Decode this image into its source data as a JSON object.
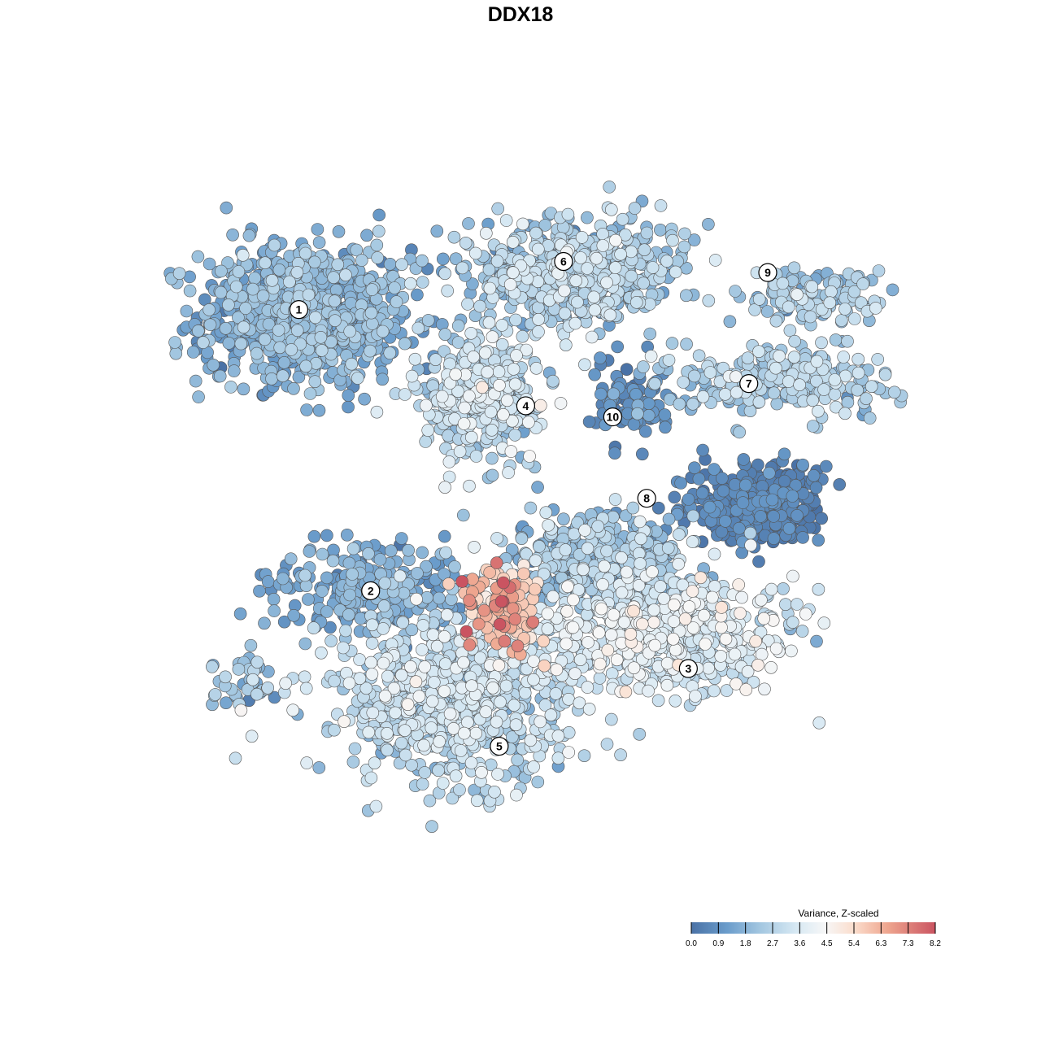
{
  "chart_data": {
    "type": "scatter",
    "title": "DDX18",
    "subtitle": "",
    "xlabel": "",
    "ylabel": "",
    "grid": false,
    "color_scale": {
      "title": "Variance, Z-scaled",
      "min": 0.0,
      "max": 8.2,
      "ticks": [
        "0.0",
        "0.9",
        "1.8",
        "2.7",
        "3.6",
        "4.5",
        "5.4",
        "6.3",
        "7.3",
        "8.2"
      ],
      "stops": [
        {
          "value": 0.0,
          "color": "#4a72a6"
        },
        {
          "value": 1.2,
          "color": "#6a9ccb"
        },
        {
          "value": 2.3,
          "color": "#a2c6e0"
        },
        {
          "value": 3.5,
          "color": "#d6e8f3"
        },
        {
          "value": 4.5,
          "color": "#f7f7f7"
        },
        {
          "value": 5.5,
          "color": "#fbdccb"
        },
        {
          "value": 6.6,
          "color": "#eea58e"
        },
        {
          "value": 8.2,
          "color": "#ca5461"
        }
      ],
      "legend_position": "bottom-right"
    },
    "point_outline_color": "#555555",
    "clusters": [
      {
        "label": "1",
        "x": -0.62,
        "y": 0.56,
        "sx": 0.14,
        "sy": 0.095,
        "n": 900,
        "mean": 1.7,
        "sd": 0.55
      },
      {
        "label": "2",
        "x": -0.45,
        "y": -0.18,
        "sx": 0.13,
        "sy": 0.055,
        "n": 260,
        "mean": 1.5,
        "sd": 0.5
      },
      {
        "label": "3",
        "x": 0.33,
        "y": -0.3,
        "sx": 0.17,
        "sy": 0.08,
        "n": 600,
        "mean": 3.5,
        "sd": 0.6
      },
      {
        "label": "4",
        "x": -0.16,
        "y": 0.33,
        "sx": 0.08,
        "sy": 0.08,
        "n": 380,
        "mean": 2.9,
        "sd": 0.7
      },
      {
        "label": "5",
        "x": -0.23,
        "y": -0.48,
        "sx": 0.16,
        "sy": 0.11,
        "n": 700,
        "mean": 3.0,
        "sd": 0.6
      },
      {
        "label": "6",
        "x": 0.08,
        "y": 0.67,
        "sx": 0.14,
        "sy": 0.07,
        "n": 600,
        "mean": 2.5,
        "sd": 0.7
      },
      {
        "label": "7",
        "x": 0.63,
        "y": 0.38,
        "sx": 0.15,
        "sy": 0.045,
        "n": 250,
        "mean": 2.5,
        "sd": 0.6
      },
      {
        "label": "8",
        "x": 0.56,
        "y": 0.05,
        "sx": 0.09,
        "sy": 0.055,
        "n": 260,
        "mean": 0.4,
        "sd": 0.4
      },
      {
        "label": "9",
        "x": 0.72,
        "y": 0.61,
        "sx": 0.1,
        "sy": 0.04,
        "n": 130,
        "mean": 2.4,
        "sd": 0.6
      },
      {
        "label": "10",
        "x": 0.24,
        "y": 0.31,
        "sx": 0.05,
        "sy": 0.05,
        "n": 90,
        "mean": 0.7,
        "sd": 0.4
      },
      {
        "label": "",
        "x": -0.1,
        "y": -0.23,
        "sx": 0.05,
        "sy": 0.06,
        "n": 130,
        "mean": 5.9,
        "sd": 0.9
      },
      {
        "label": "",
        "x": 0.15,
        "y": -0.1,
        "sx": 0.13,
        "sy": 0.06,
        "n": 380,
        "mean": 2.1,
        "sd": 0.7
      },
      {
        "label": "",
        "x": 0.6,
        "y": 0.02,
        "sx": 0.06,
        "sy": 0.04,
        "n": 160,
        "mean": 0.3,
        "sd": 0.3
      },
      {
        "label": "",
        "x": -0.78,
        "y": -0.43,
        "sx": 0.05,
        "sy": 0.04,
        "n": 40,
        "mean": 2.2,
        "sd": 0.7
      }
    ],
    "label_positions": [
      {
        "label": "1",
        "x": -0.64,
        "y": 0.57
      },
      {
        "label": "2",
        "x": -0.45,
        "y": -0.19
      },
      {
        "label": "3",
        "x": 0.39,
        "y": -0.4
      },
      {
        "label": "4",
        "x": -0.04,
        "y": 0.31
      },
      {
        "label": "5",
        "x": -0.11,
        "y": -0.61
      },
      {
        "label": "6",
        "x": 0.06,
        "y": 0.7
      },
      {
        "label": "7",
        "x": 0.55,
        "y": 0.37
      },
      {
        "label": "8",
        "x": 0.28,
        "y": 0.06
      },
      {
        "label": "9",
        "x": 0.6,
        "y": 0.67
      },
      {
        "label": "10",
        "x": 0.19,
        "y": 0.28
      }
    ],
    "xlim": [
      -1.0,
      1.0
    ],
    "ylim": [
      -1.0,
      1.0
    ]
  }
}
